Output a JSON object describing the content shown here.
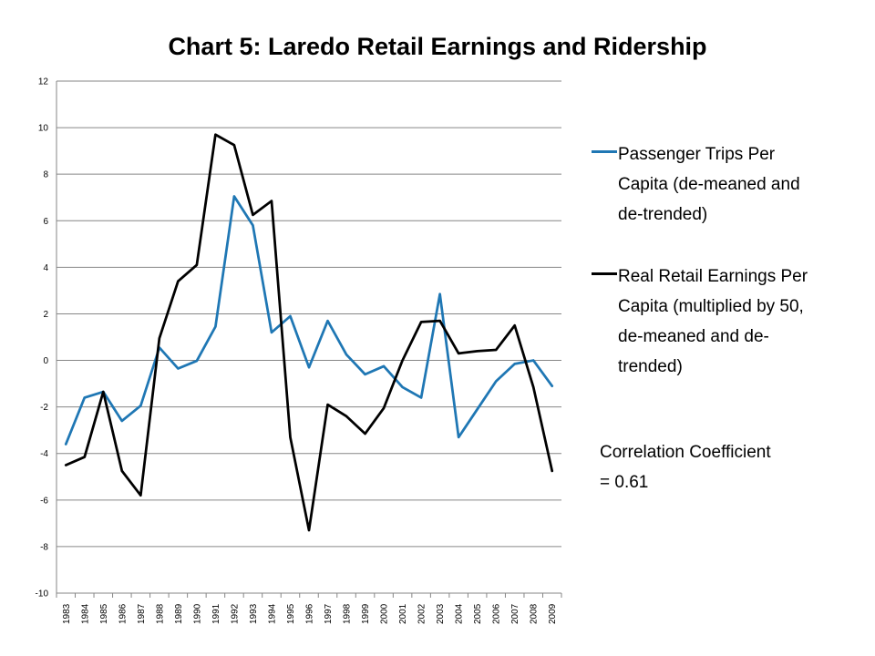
{
  "chart_data": {
    "type": "line",
    "title": "Chart 5: Laredo Retail Earnings and Ridership",
    "xlabel": "",
    "ylabel": "",
    "ylim": [
      -10,
      12
    ],
    "y_ticks": [
      -10,
      -8,
      -6,
      -4,
      -2,
      0,
      2,
      4,
      6,
      8,
      10,
      12
    ],
    "grid": "horizontal",
    "legend_position": "right",
    "x": [
      "1983",
      "1984",
      "1985",
      "1986",
      "1987",
      "1988",
      "1989",
      "1990",
      "1991",
      "1992",
      "1993",
      "1994",
      "1995",
      "1996",
      "1997",
      "1998",
      "1999",
      "2000",
      "2001",
      "2002",
      "2003",
      "2004",
      "2005",
      "2006",
      "2007",
      "2008",
      "2009"
    ],
    "series": [
      {
        "name": "Passenger Trips Per Capita (de-meaned and de-trended)",
        "color": "#1f77b4",
        "values": [
          -3.6,
          -1.6,
          -1.35,
          -2.6,
          -1.95,
          0.55,
          -0.35,
          -0.02,
          1.45,
          7.05,
          5.8,
          1.2,
          1.9,
          -0.3,
          1.7,
          0.25,
          -0.6,
          -0.25,
          -1.15,
          -1.6,
          2.85,
          -3.3,
          -2.1,
          -0.9,
          -0.15,
          0.0,
          -1.1
        ]
      },
      {
        "name": "Real Retail Earnings Per Capita (multiplied by 50, de-meaned and de-trended)",
        "color": "#000000",
        "values": [
          -4.5,
          -4.15,
          -1.35,
          -4.75,
          -5.8,
          0.95,
          3.4,
          4.1,
          9.7,
          9.25,
          6.25,
          6.85,
          -3.3,
          -7.3,
          -1.9,
          -2.4,
          -3.15,
          -2.05,
          0.0,
          1.65,
          1.7,
          0.3,
          0.4,
          0.45,
          1.5,
          -1.15,
          -4.75
        ]
      }
    ],
    "annotations": [
      {
        "line1": "Correlation Coefficient",
        "line2": "= 0.61"
      }
    ]
  },
  "legend": {
    "entry1_lines": [
      "Passenger Trips Per",
      "Capita (de-meaned and",
      "de-trended)"
    ],
    "entry2_lines": [
      "Real Retail Earnings Per",
      "Capita (multiplied by 50,",
      "de-meaned and de-",
      "trended)"
    ]
  }
}
